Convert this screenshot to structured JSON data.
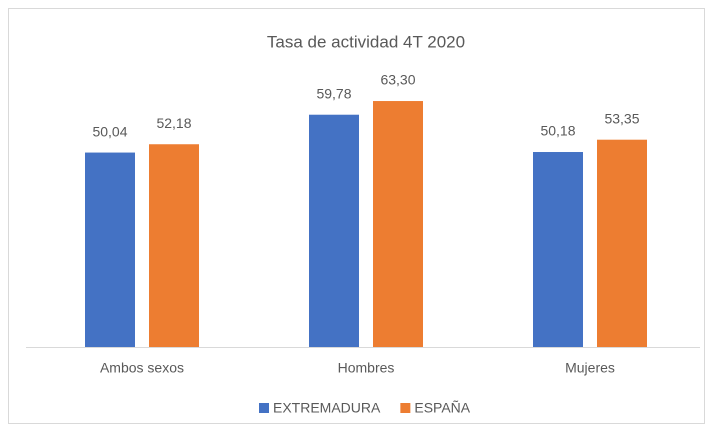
{
  "chart_data": {
    "type": "bar",
    "title": "Tasa de actividad 4T 2020",
    "categories": [
      "Ambos sexos",
      "Hombres",
      "Mujeres"
    ],
    "series": [
      {
        "name": "EXTREMADURA",
        "color": "#4472c4",
        "values": [
          50.04,
          59.78,
          50.18
        ],
        "value_labels": [
          "50,04",
          "59,78",
          "50,18"
        ]
      },
      {
        "name": "ESPAÑA",
        "color": "#ed7d31",
        "values": [
          52.18,
          63.3,
          53.35
        ],
        "value_labels": [
          "52,18",
          "63,30",
          "53,35"
        ]
      }
    ],
    "ylim": [
      0,
      70
    ],
    "grid": false,
    "legend": "bottom"
  }
}
